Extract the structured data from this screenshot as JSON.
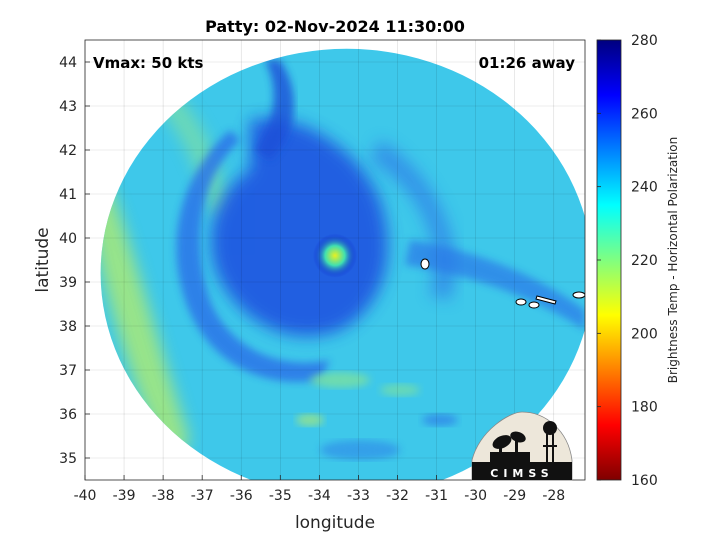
{
  "chart_data": {
    "type": "heatmap",
    "title": "Patty: 02-Nov-2024 11:30:00",
    "xlabel": "longitude",
    "ylabel": "latitude",
    "xlim": [
      -40,
      -27.2
    ],
    "ylim": [
      34.5,
      44.5
    ],
    "x_ticks": [
      -40,
      -39,
      -38,
      -37,
      -36,
      -35,
      -34,
      -33,
      -32,
      -31,
      -30,
      -29,
      -28
    ],
    "y_ticks": [
      35,
      36,
      37,
      38,
      39,
      40,
      41,
      42,
      43,
      44
    ],
    "grid": true,
    "annotations": {
      "vmax": "Vmax: 50 kts",
      "time_away": "01:26 away"
    },
    "storm_center": {
      "lon": -33.6,
      "lat": 39.6
    },
    "swath": {
      "center_lon": -33.3,
      "center_lat": 39.2,
      "radius_deg_lon": 6.3,
      "radius_deg_lat": 5.1
    },
    "colorbar": {
      "label": "Brightness Temp - Horizontal Polarization",
      "min": 160,
      "max": 280,
      "ticks": [
        160,
        180,
        200,
        220,
        240,
        260,
        280
      ],
      "colormap": [
        "#7f0000",
        "#ff0000",
        "#ff8000",
        "#ffff00",
        "#80ff80",
        "#00ffff",
        "#0080ff",
        "#0000ff",
        "#00007f"
      ]
    },
    "field_description_values": {
      "background_temp": 236,
      "warm_band_temp": 222,
      "rainband_temp": 255,
      "eye_temp": 210
    }
  },
  "logo": {
    "text": "CIMSS"
  }
}
